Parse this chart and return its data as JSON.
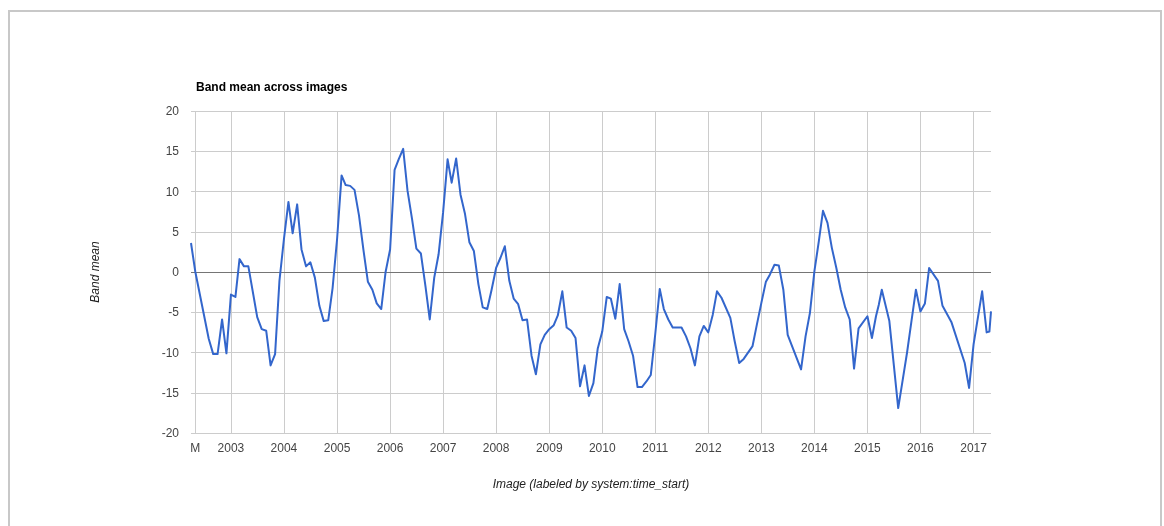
{
  "chart_data": {
    "type": "line",
    "title": "Band mean across images",
    "xlabel": "Image (labeled by system:time_start)",
    "ylabel": "Band mean",
    "x": [
      "2002-04",
      "2002-05",
      "2002-08",
      "2002-09",
      "2002-10",
      "2002-11",
      "2002-12",
      "2003-01",
      "2003-02",
      "2003-03",
      "2003-04",
      "2003-05",
      "2003-07",
      "2003-08",
      "2003-09",
      "2003-10",
      "2003-11",
      "2003-12",
      "2004-01",
      "2004-02",
      "2004-03",
      "2004-04",
      "2004-05",
      "2004-06",
      "2004-07",
      "2004-08",
      "2004-09",
      "2004-10",
      "2004-11",
      "2004-12",
      "2005-01",
      "2005-02",
      "2005-03",
      "2005-04",
      "2005-05",
      "2005-06",
      "2005-07",
      "2005-08",
      "2005-09",
      "2005-10",
      "2005-11",
      "2005-12",
      "2006-01",
      "2006-02",
      "2006-03",
      "2006-04",
      "2006-05",
      "2006-06",
      "2006-07",
      "2006-08",
      "2006-09",
      "2006-10",
      "2006-11",
      "2006-12",
      "2007-01",
      "2007-02",
      "2007-03",
      "2007-04",
      "2007-05",
      "2007-06",
      "2007-07",
      "2007-08",
      "2007-09",
      "2007-10",
      "2007-11",
      "2007-12",
      "2008-01",
      "2008-02",
      "2008-03",
      "2008-04",
      "2008-05",
      "2008-06",
      "2008-07",
      "2008-08",
      "2008-09",
      "2008-10",
      "2008-11",
      "2008-12",
      "2009-01",
      "2009-02",
      "2009-03",
      "2009-04",
      "2009-05",
      "2009-06",
      "2009-07",
      "2009-08",
      "2009-09",
      "2009-10",
      "2009-11",
      "2009-12",
      "2010-01",
      "2010-02",
      "2010-03",
      "2010-04",
      "2010-05",
      "2010-06",
      "2010-07",
      "2010-08",
      "2010-09",
      "2010-10",
      "2010-11",
      "2010-12",
      "2011-01",
      "2011-02",
      "2011-03",
      "2011-04",
      "2011-05",
      "2011-06",
      "2011-07",
      "2011-08",
      "2011-09",
      "2011-10",
      "2011-10-20",
      "2011-11",
      "2011-12",
      "2012-01",
      "2012-02",
      "2012-03",
      "2012-04",
      "2012-06",
      "2012-07",
      "2012-08",
      "2012-09",
      "2012-11",
      "2012-12",
      "2013-01",
      "2013-02",
      "2013-03",
      "2013-04",
      "2013-05",
      "2013-06",
      "2013-07",
      "2013-10",
      "2013-11",
      "2013-12",
      "2014-01",
      "2014-02",
      "2014-03",
      "2014-04",
      "2014-05",
      "2014-06",
      "2014-07",
      "2014-08",
      "2014-09",
      "2014-10",
      "2014-11",
      "2015-01",
      "2015-02",
      "2015-03",
      "2015-03-20",
      "2015-04-10",
      "2015-06",
      "2015-08",
      "2015-09",
      "2015-10",
      "2015-11",
      "2015-12",
      "2016-01",
      "2016-02",
      "2016-03",
      "2016-05",
      "2016-06",
      "2016-08",
      "2016-11",
      "2016-12",
      "2017-01",
      "2017-03",
      "2017-04",
      "2017-04-20",
      "2017-05"
    ],
    "series": [
      {
        "color": "#3366cc",
        "values": [
          3.6,
          0,
          -8.3,
          -10.2,
          -10.2,
          -5.9,
          -10.1,
          -2.8,
          -3.1,
          1.6,
          0.7,
          0.7,
          -5.6,
          -7.1,
          -7.3,
          -11.6,
          -10.2,
          -1.1,
          4.1,
          8.7,
          4.8,
          8.4,
          2.8,
          0.7,
          1.2,
          -0.7,
          -4.2,
          -6.1,
          -6.0,
          -2.0,
          4.1,
          12.0,
          10.8,
          10.7,
          10.2,
          7.0,
          2.8,
          -1.2,
          -2.2,
          -3.9,
          -4.6,
          0,
          2.8,
          12.7,
          14.0,
          15.3,
          10.1,
          6.6,
          2.9,
          2.3,
          -1.7,
          -5.9,
          -0.7,
          2.2,
          7.4,
          14.0,
          11.1,
          14.1,
          9.6,
          7.2,
          3.7,
          2.6,
          -1.5,
          -4.4,
          -4.6,
          -2.2,
          0.5,
          1.8,
          3.2,
          -1.1,
          -3.3,
          -4.0,
          -6.0,
          -5.9,
          -10.4,
          -12.7,
          -9.0,
          -7.8,
          -7.1,
          -6.6,
          -5.4,
          -2.4,
          -6.9,
          -7.3,
          -8.2,
          -14.2,
          -11.6,
          -15.4,
          -13.8,
          -9.5,
          -7.4,
          -3.1,
          -3.3,
          -5.8,
          -1.5,
          -7.1,
          -8.6,
          -10.4,
          -14.3,
          -14.3,
          -13.6,
          -12.8,
          -7.7,
          -2.1,
          -4.6,
          -5.9,
          -6.9,
          -6.9,
          -6.9,
          -8.0,
          -9.5,
          -11.6,
          -9.4,
          -8.0,
          -6.7,
          -7.5,
          -5.3,
          -2.4,
          -3.2,
          -5.7,
          -8.6,
          -11.3,
          -10.8,
          -9.2,
          -6.5,
          -3.8,
          -1.2,
          -0.3,
          0.9,
          0.8,
          -2.2,
          -7.8,
          -12.1,
          -8.0,
          -5.1,
          0.1,
          3.9,
          7.6,
          6.1,
          3.0,
          0.5,
          -2.2,
          -4.4,
          -5.9,
          -12.0,
          -7.0,
          -5.5,
          -8.2,
          -5.5,
          -4.1,
          -2.2,
          -6.1,
          -16.9,
          -13.4,
          -10.0,
          -6.0,
          -2.2,
          -4.9,
          -3.9,
          0.5,
          -1.1,
          -4.2,
          -6.2,
          -11.3,
          -14.4,
          -9.0,
          -2.4,
          -7.5,
          -7.4,
          -4.9
        ]
      }
    ],
    "xlim": [
      "2002-04",
      "2017-05"
    ],
    "xticks": [
      {
        "value": "2002-05",
        "label": "M"
      },
      {
        "value": "2003-01",
        "label": "2003"
      },
      {
        "value": "2004-01",
        "label": "2004"
      },
      {
        "value": "2005-01",
        "label": "2005"
      },
      {
        "value": "2006-01",
        "label": "2006"
      },
      {
        "value": "2007-01",
        "label": "2007"
      },
      {
        "value": "2008-01",
        "label": "2008"
      },
      {
        "value": "2009-01",
        "label": "2009"
      },
      {
        "value": "2010-01",
        "label": "2010"
      },
      {
        "value": "2011-01",
        "label": "2011"
      },
      {
        "value": "2012-01",
        "label": "2012"
      },
      {
        "value": "2013-01",
        "label": "2013"
      },
      {
        "value": "2014-01",
        "label": "2014"
      },
      {
        "value": "2015-01",
        "label": "2015"
      },
      {
        "value": "2016-01",
        "label": "2016"
      },
      {
        "value": "2017-01",
        "label": "2017"
      }
    ],
    "ylim": [
      -20,
      20
    ],
    "yticks": [
      -20,
      -15,
      -10,
      -5,
      0,
      5,
      10,
      15,
      20
    ],
    "ref_lines": [
      {
        "axis": "y",
        "value": 0,
        "color": "#757575"
      }
    ],
    "grid": true,
    "marker": "none",
    "line_style": "solid"
  }
}
